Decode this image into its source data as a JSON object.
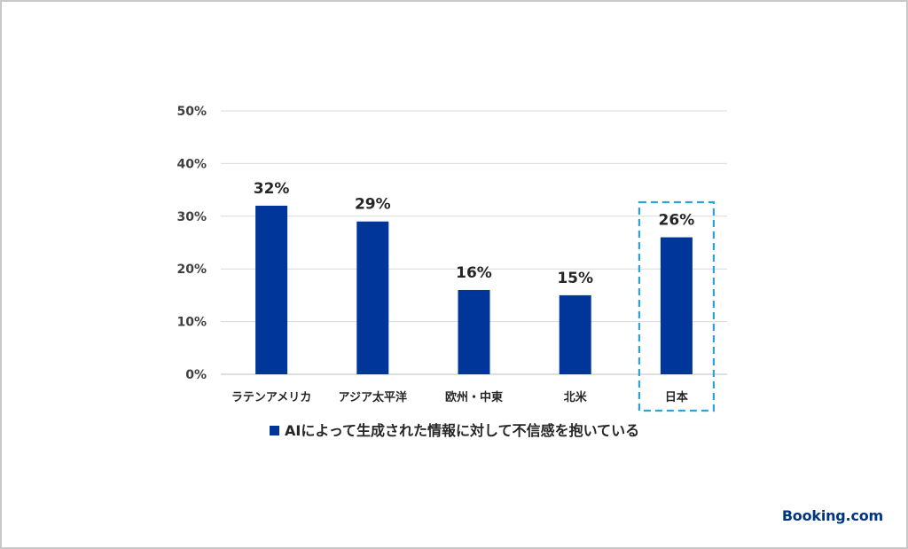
{
  "chart_data": {
    "type": "bar",
    "categories": [
      "ラテンアメリカ",
      "アジア太平洋",
      "欧州・中東",
      "北米",
      "日本"
    ],
    "series": [
      {
        "name": "AIによって生成された情報に対して不信感を抱いている",
        "values": [
          32,
          29,
          16,
          15,
          26
        ]
      }
    ],
    "data_labels": [
      "32%",
      "29%",
      "16%",
      "15%",
      "26%"
    ],
    "y_ticks": [
      "0%",
      "10%",
      "20%",
      "30%",
      "40%",
      "50%"
    ],
    "ylim": [
      0,
      50
    ],
    "grid": true,
    "legend": "bottom",
    "highlight_category": "日本",
    "colors": {
      "bar": "#00359a",
      "highlight_box": "#29a3dc",
      "grid": "#d9d9d9"
    }
  },
  "brand": {
    "logo_text": "Booking.com",
    "color": "#003580"
  }
}
